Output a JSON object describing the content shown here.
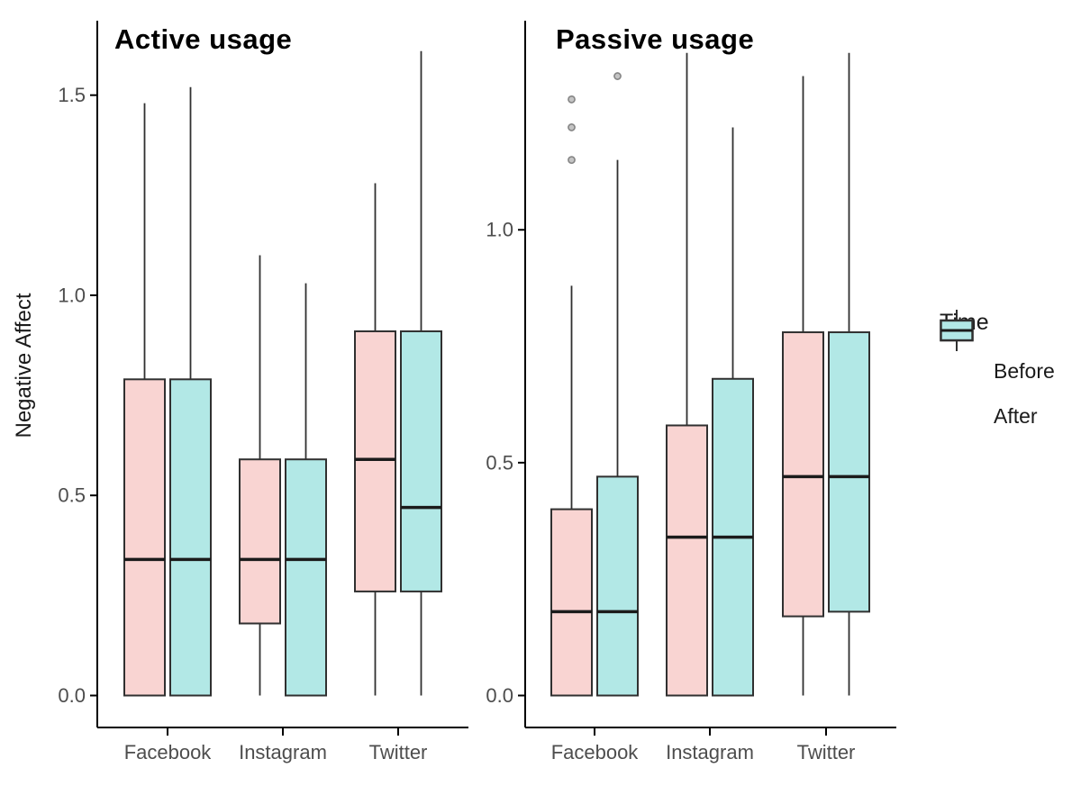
{
  "colors": {
    "before_fill": "#F9D4D2",
    "after_fill": "#B2E8E6",
    "box_border": "#303030",
    "median_line": "#1b1b1b",
    "axis_line": "#000000",
    "tick_label": "#4d4d4d",
    "outlier_fill": "#c4c4c4",
    "outlier_stroke": "#858585"
  },
  "labels": {
    "y_axis": "Negative Affect",
    "legend_title": "Time"
  },
  "chart_data": {
    "type": "boxplot",
    "title": "",
    "ylabel": "Negative Affect",
    "categories": [
      "Facebook",
      "Instagram",
      "Twitter"
    ],
    "grid": false,
    "legend": {
      "title": "Time",
      "position": "right",
      "entries": [
        {
          "name": "Before",
          "color": "#F9D4D2"
        },
        {
          "name": "After",
          "color": "#B2E8E6"
        }
      ]
    },
    "panels": [
      {
        "title": "Active usage",
        "ylim": [
          0,
          1.686
        ],
        "yticks": [
          {
            "v": 0.0,
            "label": "0.0"
          },
          {
            "v": 0.5,
            "label": "0.5"
          },
          {
            "v": 1.0,
            "label": "1.0"
          },
          {
            "v": 1.5,
            "label": "1.5"
          }
        ],
        "series": [
          {
            "name": "Before",
            "boxes": [
              {
                "category": "Facebook",
                "whisker_low": 0.0,
                "q1": 0.0,
                "median": 0.34,
                "q3": 0.79,
                "whisker_high": 1.48,
                "outliers": []
              },
              {
                "category": "Instagram",
                "whisker_low": 0.0,
                "q1": 0.18,
                "median": 0.34,
                "q3": 0.59,
                "whisker_high": 1.1,
                "outliers": []
              },
              {
                "category": "Twitter",
                "whisker_low": 0.0,
                "q1": 0.26,
                "median": 0.59,
                "q3": 0.91,
                "whisker_high": 1.28,
                "outliers": []
              }
            ]
          },
          {
            "name": "After",
            "boxes": [
              {
                "category": "Facebook",
                "whisker_low": 0.0,
                "q1": 0.0,
                "median": 0.34,
                "q3": 0.79,
                "whisker_high": 1.52,
                "outliers": []
              },
              {
                "category": "Instagram",
                "whisker_low": 0.0,
                "q1": 0.0,
                "median": 0.34,
                "q3": 0.59,
                "whisker_high": 1.03,
                "outliers": []
              },
              {
                "category": "Twitter",
                "whisker_low": 0.0,
                "q1": 0.26,
                "median": 0.47,
                "q3": 0.91,
                "whisker_high": 1.61,
                "outliers": []
              }
            ]
          }
        ]
      },
      {
        "title": "Passive usage",
        "ylim": [
          0,
          1.449
        ],
        "yticks": [
          {
            "v": 0.0,
            "label": "0.0"
          },
          {
            "v": 0.5,
            "label": "0.5"
          },
          {
            "v": 1.0,
            "label": "1.0"
          }
        ],
        "series": [
          {
            "name": "Before",
            "boxes": [
              {
                "category": "Facebook",
                "whisker_low": 0.0,
                "q1": 0.0,
                "median": 0.18,
                "q3": 0.4,
                "whisker_high": 0.88,
                "outliers": [
                  1.15,
                  1.22,
                  1.28
                ]
              },
              {
                "category": "Instagram",
                "whisker_low": 0.0,
                "q1": 0.0,
                "median": 0.34,
                "q3": 0.58,
                "whisker_high": 1.38,
                "outliers": []
              },
              {
                "category": "Twitter",
                "whisker_low": 0.0,
                "q1": 0.17,
                "median": 0.47,
                "q3": 0.78,
                "whisker_high": 1.33,
                "outliers": []
              }
            ]
          },
          {
            "name": "After",
            "boxes": [
              {
                "category": "Facebook",
                "whisker_low": 0.0,
                "q1": 0.0,
                "median": 0.18,
                "q3": 0.47,
                "whisker_high": 1.15,
                "outliers": [
                  1.33
                ]
              },
              {
                "category": "Instagram",
                "whisker_low": 0.0,
                "q1": 0.0,
                "median": 0.34,
                "q3": 0.68,
                "whisker_high": 1.22,
                "outliers": []
              },
              {
                "category": "Twitter",
                "whisker_low": 0.0,
                "q1": 0.18,
                "median": 0.47,
                "q3": 0.78,
                "whisker_high": 1.38,
                "outliers": []
              }
            ]
          }
        ]
      }
    ]
  }
}
